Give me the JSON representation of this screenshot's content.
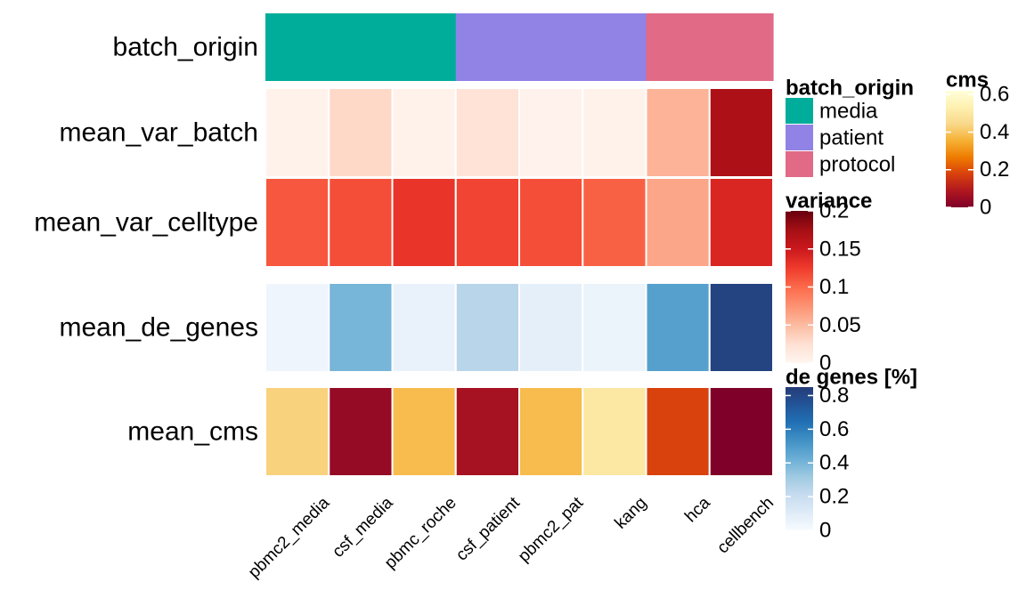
{
  "chart_data": {
    "type": "heatmap",
    "columns": [
      "pbmc2_media",
      "csf_media",
      "pbmc_roche",
      "csf_patient",
      "pbmc2_pat",
      "kang",
      "hca",
      "cellbench"
    ],
    "annotation": {
      "label": "batch_origin",
      "values": [
        "media",
        "media",
        "media",
        "patient",
        "patient",
        "patient",
        "protocol",
        "protocol"
      ],
      "levels": [
        {
          "name": "media",
          "color": "#00AD9A"
        },
        {
          "name": "patient",
          "color": "#9183E6"
        },
        {
          "name": "protocol",
          "color": "#E16A86"
        }
      ]
    },
    "rows": [
      {
        "label": "mean_var_batch",
        "scale": "variance",
        "values": [
          0.004,
          0.03,
          0.004,
          0.022,
          0.003,
          0.004,
          0.055,
          0.17
        ]
      },
      {
        "label": "mean_var_celltype",
        "scale": "variance",
        "values": [
          0.11,
          0.115,
          0.13,
          0.12,
          0.115,
          0.105,
          0.063,
          0.14
        ]
      },
      {
        "label": "mean_de_genes",
        "scale": "de genes [%]",
        "values": [
          0.04,
          0.4,
          0.06,
          0.25,
          0.08,
          0.05,
          0.48,
          0.82
        ]
      },
      {
        "label": "mean_cms",
        "scale": "cms",
        "values": [
          0.43,
          0.04,
          0.38,
          0.07,
          0.38,
          0.5,
          0.18,
          0.0
        ]
      }
    ],
    "scales": {
      "variance": {
        "title": "variance",
        "domain": [
          0,
          0.2
        ],
        "ticks": [
          0,
          0.05,
          0.1,
          0.15,
          0.2
        ],
        "tick_labels": [
          "0",
          "0.05",
          "0.1",
          "0.15",
          "0.2"
        ],
        "colors": [
          "#FFF5F0",
          "#FEE0D2",
          "#FCBBA1",
          "#FC9272",
          "#FB6A4A",
          "#EF3B2C",
          "#CB181D",
          "#A50F15",
          "#67000D"
        ]
      },
      "de_genes": {
        "title": "de genes [%]",
        "domain": [
          0,
          0.85
        ],
        "ticks": [
          0,
          0.2,
          0.4,
          0.6,
          0.8
        ],
        "tick_labels": [
          "0",
          "0.2",
          "0.4",
          "0.6",
          "0.8"
        ],
        "colors": [
          "#F7FBFF",
          "#DEEBF7",
          "#C6DBEF",
          "#9ECAE1",
          "#6BAED6",
          "#4292C6",
          "#2171B5",
          "#225599",
          "#253C78"
        ]
      },
      "cms": {
        "title": "cms",
        "domain": [
          0,
          0.62
        ],
        "ticks": [
          0,
          0.2,
          0.4,
          0.6
        ],
        "tick_labels": [
          "0",
          "0.2",
          "0.4",
          "0.6"
        ],
        "colors": [
          "#7F0028",
          "#B0171F",
          "#D8400C",
          "#EE7B00",
          "#F6B134",
          "#F9D88A",
          "#FEF0B0",
          "#FFFFD8"
        ]
      }
    },
    "batch_legend_title": "batch_origin"
  }
}
